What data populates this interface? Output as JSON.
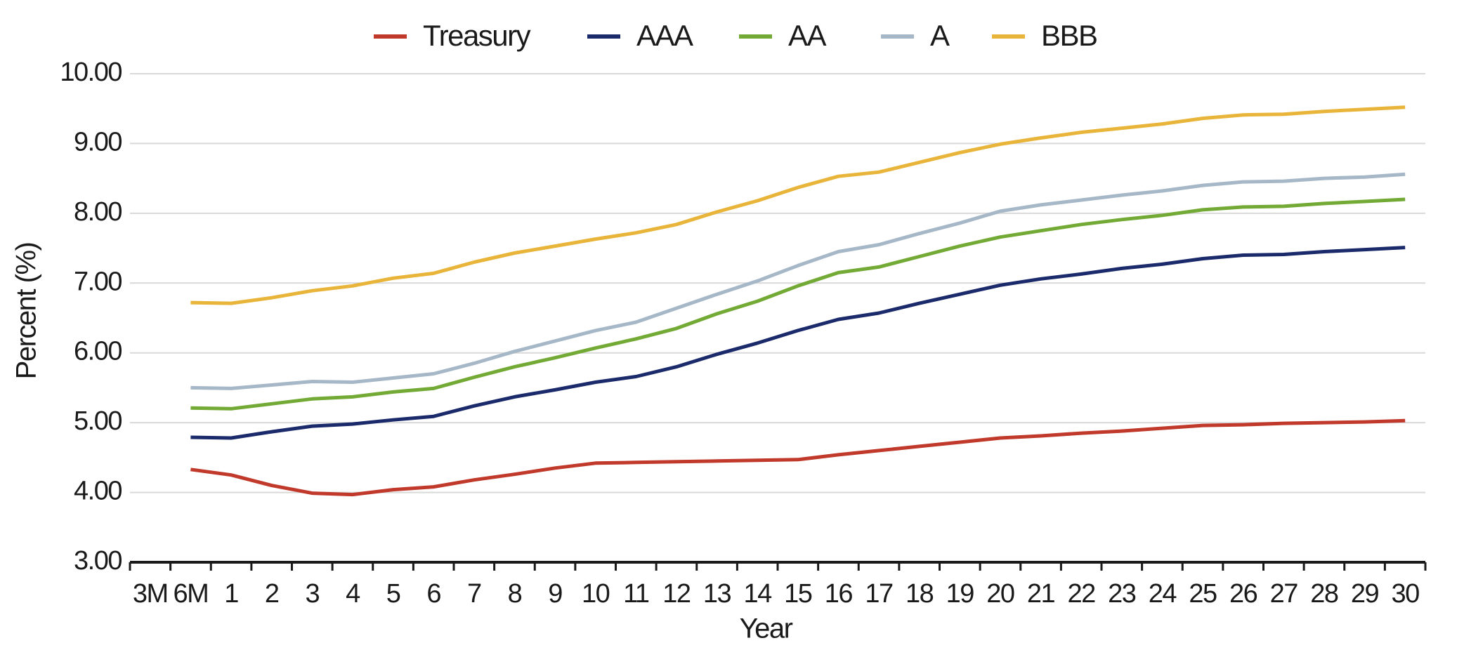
{
  "chart_data": {
    "type": "line",
    "x_label": "Year",
    "y_label": "Percent (%)",
    "categories": [
      "3M",
      "6M",
      "1",
      "2",
      "3",
      "4",
      "5",
      "6",
      "7",
      "8",
      "9",
      "10",
      "11",
      "12",
      "13",
      "14",
      "15",
      "16",
      "17",
      "18",
      "19",
      "20",
      "21",
      "22",
      "23",
      "24",
      "25",
      "26",
      "27",
      "28",
      "29",
      "30"
    ],
    "series": [
      {
        "name": "Treasury",
        "color": "#c0392b",
        "values": [
          null,
          4.33,
          4.25,
          4.1,
          3.99,
          3.97,
          4.04,
          4.08,
          4.18,
          4.26,
          4.35,
          4.42,
          4.43,
          4.44,
          4.45,
          4.46,
          4.47,
          4.54,
          4.6,
          4.66,
          4.72,
          4.78,
          4.81,
          4.85,
          4.88,
          4.92,
          4.96,
          4.97,
          4.99,
          5.0,
          5.01,
          5.03
        ]
      },
      {
        "name": "AAA",
        "color": "#1b2a6b",
        "values": [
          null,
          4.79,
          4.78,
          4.87,
          4.95,
          4.98,
          5.04,
          5.09,
          5.24,
          5.37,
          5.47,
          5.58,
          5.66,
          5.8,
          5.98,
          6.14,
          6.32,
          6.48,
          6.57,
          6.71,
          6.84,
          6.97,
          7.06,
          7.13,
          7.21,
          7.27,
          7.35,
          7.4,
          7.41,
          7.45,
          7.48,
          7.51
        ]
      },
      {
        "name": "AA",
        "color": "#72aa35",
        "values": [
          null,
          5.21,
          5.2,
          5.27,
          5.34,
          5.37,
          5.44,
          5.49,
          5.65,
          5.8,
          5.93,
          6.07,
          6.2,
          6.35,
          6.56,
          6.74,
          6.96,
          7.15,
          7.23,
          7.38,
          7.53,
          7.66,
          7.75,
          7.84,
          7.91,
          7.97,
          8.05,
          8.09,
          8.1,
          8.14,
          8.17,
          8.2
        ]
      },
      {
        "name": "A",
        "color": "#a6b8c8",
        "values": [
          null,
          5.5,
          5.49,
          5.54,
          5.59,
          5.58,
          5.64,
          5.7,
          5.85,
          6.02,
          6.17,
          6.32,
          6.44,
          6.64,
          6.84,
          7.03,
          7.25,
          7.45,
          7.55,
          7.71,
          7.86,
          8.03,
          8.12,
          8.19,
          8.26,
          8.32,
          8.4,
          8.45,
          8.46,
          8.5,
          8.52,
          8.56
        ]
      },
      {
        "name": "BBB",
        "color": "#e8b53a",
        "values": [
          null,
          6.72,
          6.71,
          6.79,
          6.89,
          6.96,
          7.07,
          7.14,
          7.3,
          7.43,
          7.53,
          7.63,
          7.72,
          7.84,
          8.02,
          8.18,
          8.37,
          8.53,
          8.59,
          8.73,
          8.87,
          8.99,
          9.08,
          9.16,
          9.22,
          9.28,
          9.36,
          9.41,
          9.42,
          9.46,
          9.49,
          9.52
        ]
      }
    ],
    "ylim": [
      3,
      10
    ],
    "yticks": [
      {
        "value": 3,
        "label": "3.00"
      },
      {
        "value": 4,
        "label": "4.00"
      },
      {
        "value": 5,
        "label": "5.00"
      },
      {
        "value": 6,
        "label": "6.00"
      },
      {
        "value": 7,
        "label": "7.00"
      },
      {
        "value": 8,
        "label": "8.00"
      },
      {
        "value": 9,
        "label": "9.00"
      },
      {
        "value": 10,
        "label": "10.00"
      }
    ],
    "grid": true,
    "legend": "top"
  }
}
